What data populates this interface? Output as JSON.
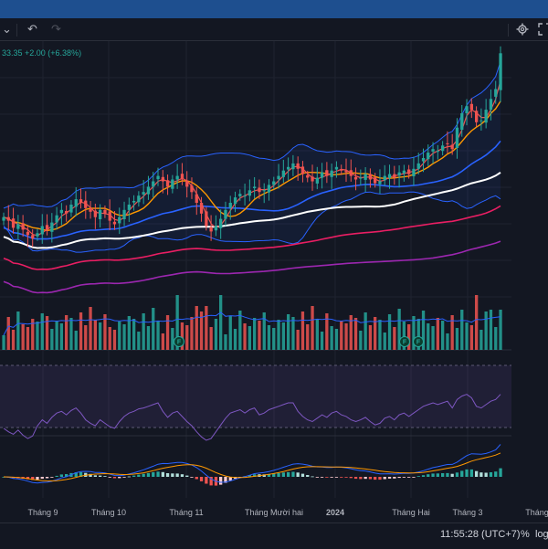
{
  "toolbar": {
    "chevron": "⌄",
    "undo": "↶",
    "redo": "↷",
    "settings_icon": "gear-icon",
    "fullscreen_icon": "fullscreen-icon"
  },
  "status": {
    "change_text": "33.35  +2.00 (+6.38%)"
  },
  "bottom": {
    "clock": "11:55:28 (UTC+7)",
    "percent": "%",
    "log": "log"
  },
  "colors": {
    "up": "#26a69a",
    "down": "#ef5350",
    "bb": "#2962ff",
    "ma_fast": "#ef5350",
    "ma_mid": "#ff9800",
    "ma_blue": "#2962ff",
    "ma_white": "#ffffff",
    "ma_pink": "#e91e63",
    "ma_purple": "#9c27b0",
    "rsi": "#7e57c2",
    "macd": "#2962ff",
    "signal": "#ff9800"
  },
  "chart_data": {
    "type": "candlestick",
    "x_ticks": [
      "Tháng 9",
      "Tháng 10",
      "Tháng 11",
      "Tháng Mười hai",
      "2024",
      "Tháng Hai",
      "Tháng 3",
      "Tháng"
    ],
    "financial_markers": [
      "F",
      "F",
      "F"
    ],
    "price_trend": [
      24.2,
      24.0,
      23.6,
      23.8,
      23.5,
      23.2,
      23.0,
      23.3,
      23.7,
      23.5,
      23.9,
      24.3,
      24.6,
      24.4,
      24.9,
      25.2,
      25.0,
      24.7,
      24.5,
      24.2,
      24.6,
      24.4,
      24.0,
      23.8,
      24.2,
      24.6,
      24.9,
      25.1,
      25.4,
      25.6,
      25.9,
      26.2,
      26.5,
      26.2,
      25.9,
      26.3,
      26.5,
      26.3,
      25.9,
      25.6,
      25.0,
      24.4,
      23.7,
      23.4,
      23.7,
      24.1,
      24.6,
      25.0,
      25.3,
      25.5,
      25.4,
      25.7,
      25.9,
      25.6,
      25.7,
      26.0,
      26.2,
      26.5,
      26.8,
      27.0,
      27.2,
      26.9,
      26.6,
      26.4,
      26.2,
      26.4,
      26.7,
      26.5,
      26.8,
      27.0,
      26.8,
      26.7,
      26.5,
      26.3,
      26.4,
      26.6,
      26.3,
      26.1,
      26.2,
      26.5,
      26.6,
      26.4,
      26.7,
      26.8,
      26.6,
      26.9,
      27.2,
      27.5,
      27.8,
      28.0,
      27.9,
      28.2,
      28.3,
      28.0,
      29.2,
      30.0,
      30.4,
      30.2,
      29.5,
      29.6,
      30.2,
      30.8,
      31.35,
      33.35
    ],
    "rsi_trend": [
      42,
      38,
      35,
      40,
      34,
      30,
      33,
      45,
      52,
      48,
      55,
      60,
      62,
      58,
      63,
      66,
      60,
      52,
      48,
      45,
      52,
      48,
      44,
      42,
      50,
      56,
      60,
      62,
      65,
      66,
      68,
      70,
      72,
      62,
      55,
      60,
      62,
      56,
      50,
      45,
      38,
      32,
      28,
      30,
      38,
      46,
      54,
      60,
      62,
      64,
      60,
      64,
      66,
      58,
      60,
      64,
      66,
      68,
      70,
      72,
      72,
      62,
      56,
      52,
      50,
      54,
      58,
      55,
      60,
      62,
      58,
      56,
      52,
      50,
      52,
      55,
      50,
      46,
      48,
      54,
      56,
      52,
      58,
      60,
      56,
      60,
      64,
      68,
      70,
      72,
      70,
      72,
      74,
      66,
      76,
      80,
      82,
      78,
      68,
      66,
      70,
      74,
      76,
      82
    ]
  }
}
